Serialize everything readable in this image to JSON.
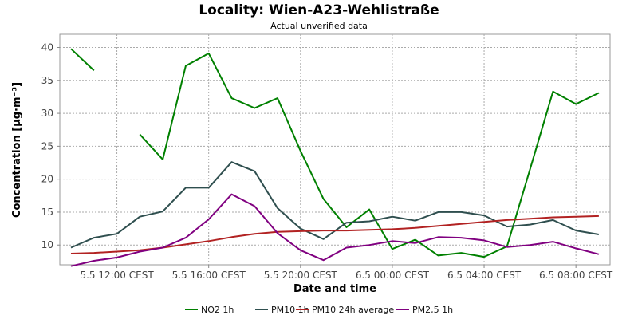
{
  "chart_data": {
    "type": "line",
    "title": "Locality: Wien-A23-Wehlistraße",
    "subtitle": "Actual unverified data",
    "xlabel": "Date and time",
    "ylabel": "Concentration [µg·m⁻³]",
    "x": [
      "5.5 10:00",
      "5.5 11:00",
      "5.5 12:00",
      "5.5 13:00",
      "5.5 14:00",
      "5.5 15:00",
      "5.5 16:00",
      "5.5 17:00",
      "5.5 18:00",
      "5.5 19:00",
      "5.5 20:00",
      "5.5 21:00",
      "5.5 22:00",
      "5.5 23:00",
      "6.5 00:00",
      "6.5 01:00",
      "6.5 02:00",
      "6.5 03:00",
      "6.5 04:00",
      "6.5 05:00",
      "6.5 06:00",
      "6.5 07:00",
      "6.5 08:00",
      "6.5 09:00"
    ],
    "x_ticks": [
      "5.5 12:00 CEST",
      "5.5 16:00 CEST",
      "5.5 20:00 CEST",
      "6.5 00:00 CEST",
      "6.5 04:00 CEST",
      "6.5 08:00 CEST"
    ],
    "y_ticks": [
      "10",
      "15",
      "20",
      "25",
      "30",
      "35",
      "40"
    ],
    "ylim": [
      7,
      42
    ],
    "grid": true,
    "legend_position": "bottom",
    "series": [
      {
        "name": "NO2 1h",
        "color": "#008000",
        "values": [
          39.8,
          36.5,
          null,
          26.8,
          23.0,
          37.2,
          39.1,
          32.3,
          30.8,
          32.3,
          24.3,
          17.0,
          12.7,
          15.4,
          9.4,
          10.8,
          8.4,
          8.8,
          8.2,
          9.8,
          21.5,
          33.3,
          31.4,
          33.1
        ]
      },
      {
        "name": "PM10 1h",
        "color": "#2f4f4f",
        "values": [
          9.6,
          11.1,
          11.7,
          14.3,
          15.1,
          18.7,
          18.7,
          22.6,
          21.2,
          15.6,
          12.5,
          10.9,
          13.4,
          13.6,
          14.3,
          13.7,
          15.0,
          15.0,
          14.5,
          12.8,
          13.1,
          13.8,
          12.2,
          11.6
        ]
      },
      {
        "name": "PM10 24h average",
        "color": "#b22222",
        "values": [
          8.7,
          8.8,
          9.0,
          9.2,
          9.6,
          10.1,
          10.6,
          11.2,
          11.7,
          12.0,
          12.1,
          12.2,
          12.2,
          12.3,
          12.4,
          12.6,
          12.9,
          13.2,
          13.5,
          13.8,
          14.0,
          14.2,
          14.3,
          14.4
        ]
      },
      {
        "name": "PM2,5 1h",
        "color": "#800080",
        "values": [
          6.8,
          7.6,
          8.1,
          9.0,
          9.6,
          11.1,
          13.9,
          17.7,
          15.9,
          11.8,
          9.2,
          7.7,
          9.6,
          10.0,
          10.6,
          10.3,
          11.2,
          11.1,
          10.7,
          9.7,
          10.0,
          10.5,
          9.5,
          8.6
        ]
      }
    ]
  }
}
